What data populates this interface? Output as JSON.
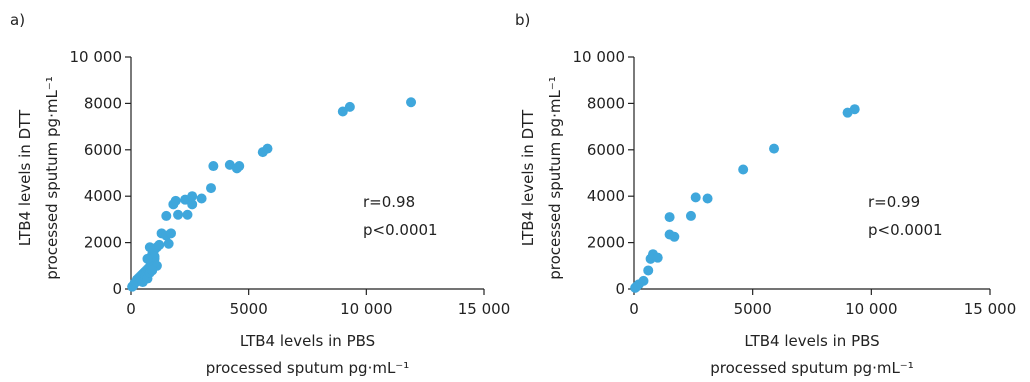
{
  "chart_data": [
    {
      "type": "scatter",
      "panel_label": "a)",
      "xlabel": [
        "LTB4 levels in PBS",
        "processed sputum pg·mL⁻¹"
      ],
      "ylabel": [
        "LTB4 levels in DTT",
        "processed sputum pg·mL⁻¹"
      ],
      "xlim": [
        0,
        15000
      ],
      "ylim": [
        0,
        10000
      ],
      "xticks": [
        0,
        5000,
        10000,
        15000
      ],
      "xtick_labels": [
        "0",
        "5000",
        "10 000",
        "15 000"
      ],
      "yticks": [
        0,
        2000,
        4000,
        6000,
        8000,
        10000
      ],
      "ytick_labels": [
        "0",
        "2000",
        "4000",
        "6000",
        "8000",
        "10 000"
      ],
      "annotations": [
        "r=0.98",
        "p<0.0001"
      ],
      "marker_color": "#3fa7dc",
      "grid": false,
      "points": [
        [
          50,
          100
        ],
        [
          100,
          150
        ],
        [
          150,
          250
        ],
        [
          200,
          300
        ],
        [
          250,
          400
        ],
        [
          300,
          450
        ],
        [
          350,
          500
        ],
        [
          400,
          550
        ],
        [
          450,
          600
        ],
        [
          500,
          650
        ],
        [
          550,
          700
        ],
        [
          600,
          750
        ],
        [
          650,
          800
        ],
        [
          700,
          850
        ],
        [
          750,
          900
        ],
        [
          800,
          950
        ],
        [
          850,
          1000
        ],
        [
          900,
          1100
        ],
        [
          950,
          1200
        ],
        [
          1000,
          1300
        ],
        [
          500,
          300
        ],
        [
          600,
          500
        ],
        [
          700,
          450
        ],
        [
          800,
          700
        ],
        [
          900,
          1500
        ],
        [
          1000,
          1700
        ],
        [
          1100,
          1800
        ],
        [
          1200,
          1900
        ],
        [
          1000,
          1400
        ],
        [
          800,
          1800
        ],
        [
          1100,
          1000
        ],
        [
          700,
          1300
        ],
        [
          900,
          800
        ],
        [
          1300,
          2400
        ],
        [
          1500,
          2300
        ],
        [
          1600,
          1950
        ],
        [
          1700,
          2400
        ],
        [
          1500,
          3150
        ],
        [
          1800,
          3650
        ],
        [
          1900,
          3800
        ],
        [
          2000,
          3200
        ],
        [
          2300,
          3850
        ],
        [
          2400,
          3200
        ],
        [
          2600,
          3650
        ],
        [
          2600,
          4000
        ],
        [
          3000,
          3900
        ],
        [
          3400,
          4350
        ],
        [
          3500,
          5300
        ],
        [
          4200,
          5350
        ],
        [
          4500,
          5200
        ],
        [
          4600,
          5300
        ],
        [
          5600,
          5900
        ],
        [
          5800,
          6050
        ],
        [
          9000,
          7650
        ],
        [
          9300,
          7850
        ],
        [
          11900,
          8050
        ]
      ]
    },
    {
      "type": "scatter",
      "panel_label": "b)",
      "xlabel": [
        "LTB4 levels in PBS",
        "processed sputum pg·mL⁻¹"
      ],
      "ylabel": [
        "LTB4 levels in DTT",
        "processed sputum pg·mL⁻¹"
      ],
      "xlim": [
        0,
        15000
      ],
      "ylim": [
        0,
        10000
      ],
      "xticks": [
        0,
        5000,
        10000,
        15000
      ],
      "xtick_labels": [
        "0",
        "5000",
        "10 000",
        "15 000"
      ],
      "yticks": [
        0,
        2000,
        4000,
        6000,
        8000,
        10000
      ],
      "ytick_labels": [
        "0",
        "2000",
        "4000",
        "6000",
        "8000",
        "10 000"
      ],
      "annotations": [
        "r=0.99",
        "p<0.0001"
      ],
      "marker_color": "#3fa7dc",
      "grid": false,
      "points": [
        [
          50,
          50
        ],
        [
          100,
          100
        ],
        [
          200,
          200
        ],
        [
          400,
          350
        ],
        [
          600,
          800
        ],
        [
          700,
          1300
        ],
        [
          800,
          1500
        ],
        [
          1000,
          1350
        ],
        [
          1500,
          2350
        ],
        [
          1500,
          3100
        ],
        [
          1700,
          2250
        ],
        [
          2400,
          3150
        ],
        [
          2600,
          3950
        ],
        [
          3100,
          3900
        ],
        [
          4600,
          5150
        ],
        [
          5900,
          6050
        ],
        [
          9000,
          7600
        ],
        [
          9300,
          7750
        ]
      ]
    }
  ]
}
